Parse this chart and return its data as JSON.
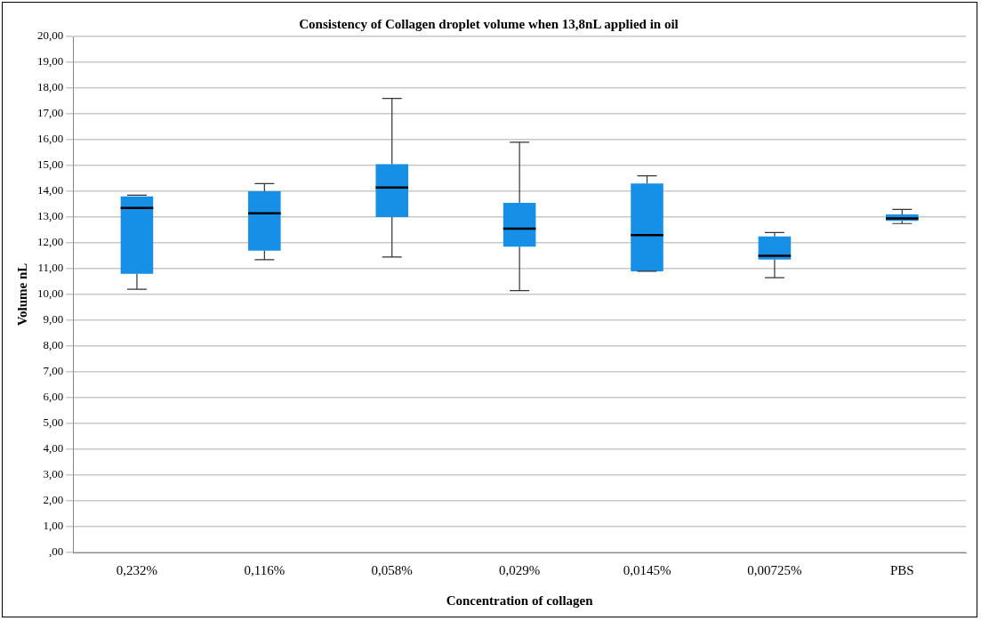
{
  "chart_data": {
    "type": "box",
    "title": "Consistency of Collagen droplet volume when 13,8nL applied in oil",
    "xlabel": "Concentration of collagen",
    "ylabel": "Volume nL",
    "categories": [
      "0,232%",
      "0,116%",
      "0,058%",
      "0,029%",
      "0,0145%",
      "0,00725%",
      "PBS"
    ],
    "color": "#1590e6",
    "boxes": [
      {
        "low": 10.2,
        "q1": 10.8,
        "median": 13.35,
        "q3": 13.8,
        "high": 13.85
      },
      {
        "low": 11.35,
        "q1": 11.7,
        "median": 13.15,
        "q3": 14.0,
        "high": 14.3
      },
      {
        "low": 11.45,
        "q1": 13.0,
        "median": 14.15,
        "q3": 15.05,
        "high": 17.6
      },
      {
        "low": 10.15,
        "q1": 11.85,
        "median": 12.55,
        "q3": 13.55,
        "high": 15.9
      },
      {
        "low": 10.9,
        "q1": 10.9,
        "median": 12.3,
        "q3": 14.3,
        "high": 14.6
      },
      {
        "low": 10.65,
        "q1": 11.35,
        "median": 11.5,
        "q3": 12.25,
        "high": 12.4
      },
      {
        "low": 12.75,
        "q1": 12.85,
        "median": 12.95,
        "q3": 13.1,
        "high": 13.3
      }
    ],
    "ylim": [
      0,
      20
    ],
    "yticks": [
      {
        "value": 0,
        "label": ",00"
      },
      {
        "value": 1,
        "label": "1,00"
      },
      {
        "value": 2,
        "label": "2,00"
      },
      {
        "value": 3,
        "label": "3,00"
      },
      {
        "value": 4,
        "label": "4,00"
      },
      {
        "value": 5,
        "label": "5,00"
      },
      {
        "value": 6,
        "label": "6,00"
      },
      {
        "value": 7,
        "label": "7,00"
      },
      {
        "value": 8,
        "label": "8,00"
      },
      {
        "value": 9,
        "label": "9,00"
      },
      {
        "value": 10,
        "label": "10,00"
      },
      {
        "value": 11,
        "label": "11,00"
      },
      {
        "value": 12,
        "label": "12,00"
      },
      {
        "value": 13,
        "label": "13,00"
      },
      {
        "value": 14,
        "label": "14,00"
      },
      {
        "value": 15,
        "label": "15,00"
      },
      {
        "value": 16,
        "label": "16,00"
      },
      {
        "value": 17,
        "label": "17,00"
      },
      {
        "value": 18,
        "label": "18,00"
      },
      {
        "value": 19,
        "label": "19,00"
      },
      {
        "value": 20,
        "label": "20,00"
      }
    ],
    "grid": "y",
    "legend": false
  }
}
